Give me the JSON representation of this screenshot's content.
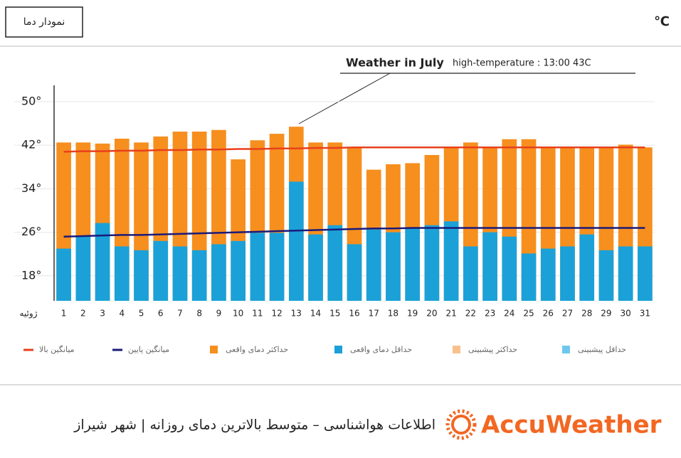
{
  "chart_data": {
    "type": "bar",
    "box_title": "نمودار دما",
    "unit": "℃",
    "annotation": {
      "title": "Weather in July",
      "text": "high-temperature : 13:00  43C"
    },
    "x_label": "ژوئیه",
    "categories": [
      "1",
      "2",
      "3",
      "4",
      "5",
      "6",
      "7",
      "8",
      "9",
      "10",
      "11",
      "12",
      "13",
      "14",
      "15",
      "16",
      "17",
      "18",
      "19",
      "20",
      "21",
      "22",
      "23",
      "24",
      "25",
      "26",
      "27",
      "28",
      "29",
      "30",
      "31"
    ],
    "ylim": [
      13.4,
      53
    ],
    "yticks": [
      {
        "value": 18,
        "label": "18°"
      },
      {
        "value": 26,
        "label": "26°"
      },
      {
        "value": 34,
        "label": "34°"
      },
      {
        "value": 42,
        "label": "42°"
      },
      {
        "value": 50,
        "label": "50°"
      }
    ],
    "grid": true,
    "series": [
      {
        "name": "میانگین بالا",
        "type": "line",
        "color": "#e8401c",
        "values": [
          40.8,
          40.9,
          40.9,
          41.0,
          41.0,
          41.1,
          41.1,
          41.2,
          41.2,
          41.3,
          41.3,
          41.4,
          41.4,
          41.5,
          41.5,
          41.6,
          41.6,
          41.6,
          41.6,
          41.6,
          41.6,
          41.6,
          41.6,
          41.6,
          41.6,
          41.6,
          41.6,
          41.6,
          41.6,
          41.6,
          41.6
        ]
      },
      {
        "name": "میانگین پایین",
        "type": "line",
        "color": "#1a1a7a",
        "values": [
          25.2,
          25.3,
          25.4,
          25.5,
          25.5,
          25.6,
          25.7,
          25.8,
          25.9,
          26.0,
          26.1,
          26.2,
          26.3,
          26.4,
          26.5,
          26.6,
          26.7,
          26.7,
          26.8,
          26.8,
          26.8,
          26.8,
          26.8,
          26.8,
          26.8,
          26.8,
          26.8,
          26.8,
          26.8,
          26.8,
          26.8
        ]
      },
      {
        "name": "حداکثر دمای واقعی",
        "type": "bar",
        "color": "#f68f1e",
        "values": [
          42.5,
          42.5,
          42.3,
          43.2,
          42.5,
          43.6,
          44.5,
          44.5,
          44.8,
          39.4,
          42.9,
          44.1,
          45.4,
          42.5,
          42.5,
          41.6,
          37.5,
          38.5,
          38.7,
          40.2,
          41.7,
          42.5,
          41.6,
          43.1,
          43.1,
          41.6,
          41.6,
          41.6,
          41.6,
          42.1,
          41.6
        ]
      },
      {
        "name": "حداقل دمای واقعی",
        "type": "bar",
        "color": "#1ba1d8",
        "values": [
          23.0,
          25.4,
          27.7,
          23.4,
          22.7,
          24.4,
          23.4,
          22.7,
          23.8,
          24.4,
          25.9,
          25.9,
          35.3,
          25.6,
          27.3,
          23.8,
          26.5,
          26.0,
          26.8,
          27.3,
          28.0,
          23.4,
          26.0,
          25.2,
          22.1,
          23.0,
          23.4,
          25.6,
          22.7,
          23.4,
          23.4
        ]
      },
      {
        "name": "حداکثر پیشبینی",
        "type": "bar",
        "color": "#f9c08e",
        "values": [
          null,
          null,
          null,
          null,
          null,
          null,
          null,
          null,
          null,
          null,
          null,
          null,
          null,
          null,
          null,
          null,
          null,
          null,
          null,
          null,
          null,
          null,
          null,
          null,
          null,
          null,
          null,
          null,
          null,
          null,
          null
        ]
      },
      {
        "name": "حداقل پیشبینی",
        "type": "bar",
        "color": "#6dc8ec",
        "values": [
          null,
          null,
          null,
          null,
          null,
          null,
          null,
          null,
          null,
          null,
          null,
          null,
          null,
          null,
          null,
          null,
          null,
          null,
          null,
          null,
          null,
          null,
          null,
          null,
          null,
          null,
          null,
          null,
          null,
          null,
          null
        ]
      }
    ],
    "footer": "اطلاعات هواشناسی – متوسط بالاترین دمای روزانه | شهر شیراز",
    "brand": "AccuWeather"
  }
}
